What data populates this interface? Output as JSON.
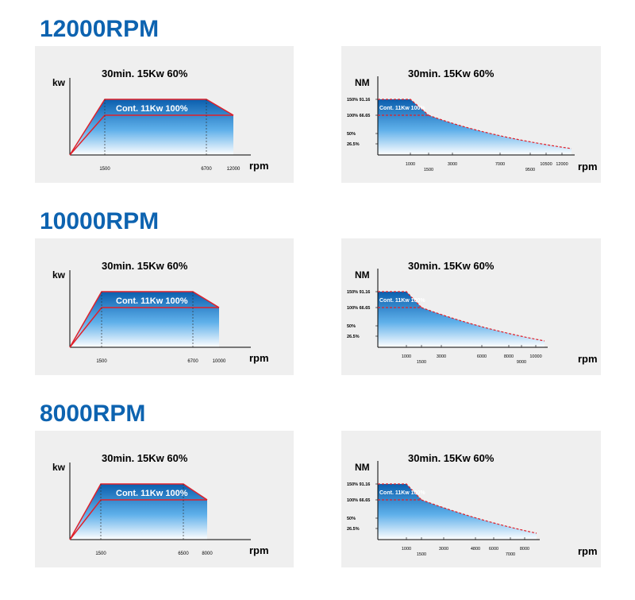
{
  "sections": [
    {
      "title": "12000RPM",
      "power": {
        "y_label": "kw",
        "peak_label": "30min. 15Kw 60%",
        "cont_label": "Cont. 11Kw 100%",
        "x_label": "rpm",
        "x_ticks": [
          "1500",
          "6700",
          "12000"
        ]
      },
      "torque": {
        "y_label": "NM",
        "peak_label": "30min. 15Kw 60%",
        "cont_label": "Cont. 11Kw 100%",
        "x_label": "rpm",
        "y_ticks": [
          "150% 91.16",
          "100% 66.65",
          "50%",
          "26.5%"
        ],
        "x_ticks": [
          "1000",
          "1500",
          "3000",
          "7000",
          "9500",
          "10500",
          "12000"
        ]
      }
    },
    {
      "title": "10000RPM",
      "power": {
        "y_label": "kw",
        "peak_label": "30min. 15Kw 60%",
        "cont_label": "Cont. 11Kw 100%",
        "x_label": "rpm",
        "x_ticks": [
          "1500",
          "6700",
          "10000"
        ]
      },
      "torque": {
        "y_label": "NM",
        "peak_label": "30min. 15Kw 60%",
        "cont_label": "Cont. 11Kw 100%",
        "x_label": "rpm",
        "y_ticks": [
          "150% 91.16",
          "100% 66.65",
          "50%",
          "26.5%"
        ],
        "x_ticks": [
          "1000",
          "1500",
          "3000",
          "6000",
          "8000",
          "9000",
          "10000"
        ]
      }
    },
    {
      "title": "8000RPM",
      "power": {
        "y_label": "kw",
        "peak_label": "30min. 15Kw 60%",
        "cont_label": "Cont. 11Kw 100%",
        "x_label": "rpm",
        "x_ticks": [
          "1500",
          "6500",
          "8000"
        ]
      },
      "torque": {
        "y_label": "NM",
        "peak_label": "30min. 15Kw 60%",
        "cont_label": "Cont. 11Kw 100%",
        "x_label": "rpm",
        "y_ticks": [
          "150% 91.16",
          "100% 66.65",
          "50%",
          "26.5%"
        ],
        "x_ticks": [
          "1000",
          "1500",
          "3000",
          "4800",
          "6000",
          "7000",
          "8000"
        ]
      }
    }
  ]
}
